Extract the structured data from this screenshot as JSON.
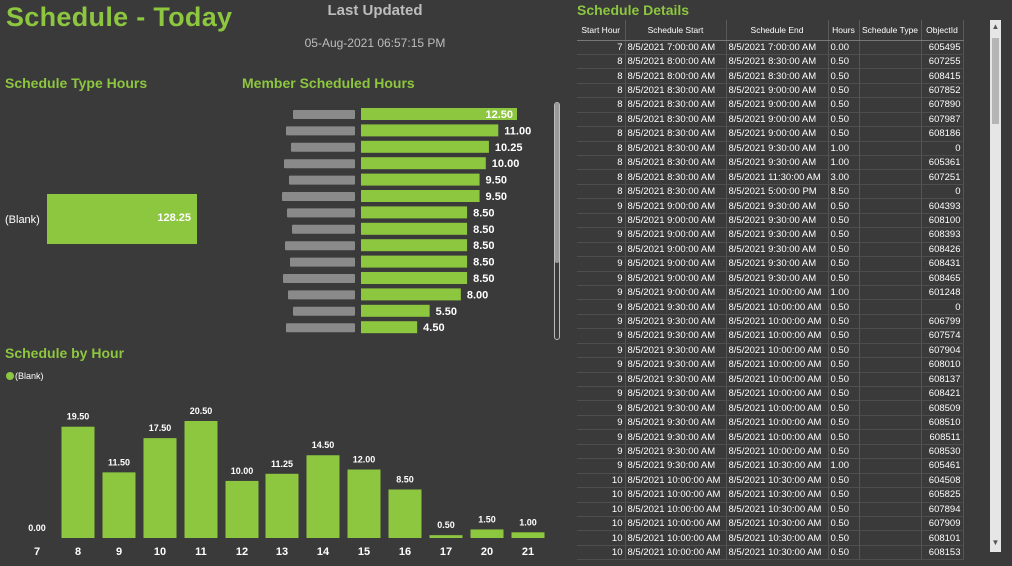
{
  "header": {
    "title": "Schedule - Today",
    "last_updated_label": "Last Updated",
    "last_updated_value": "05-Aug-2021 06:57:15 PM"
  },
  "schedule_type_hours": {
    "title": "Schedule Type Hours",
    "category": "(Blank)",
    "value": "128.25"
  },
  "member_hours": {
    "title": "Member Scheduled Hours"
  },
  "schedule_by_hour": {
    "title": "Schedule by Hour",
    "legend": "(Blank)"
  },
  "schedule_details": {
    "title": "Schedule Details",
    "columns": [
      "Start Hour",
      "Schedule Start",
      "Schedule End",
      "Hours",
      "Schedule Type",
      "ObjectId"
    ],
    "rows": [
      [
        "7",
        "8/5/2021 7:00:00 AM",
        "8/5/2021 7:00:00 AM",
        "0.00",
        "",
        "605495"
      ],
      [
        "8",
        "8/5/2021 8:00:00 AM",
        "8/5/2021 8:30:00 AM",
        "0.50",
        "",
        "607255"
      ],
      [
        "8",
        "8/5/2021 8:00:00 AM",
        "8/5/2021 8:30:00 AM",
        "0.50",
        "",
        "608415"
      ],
      [
        "8",
        "8/5/2021 8:30:00 AM",
        "8/5/2021 9:00:00 AM",
        "0.50",
        "",
        "607852"
      ],
      [
        "8",
        "8/5/2021 8:30:00 AM",
        "8/5/2021 9:00:00 AM",
        "0.50",
        "",
        "607890"
      ],
      [
        "8",
        "8/5/2021 8:30:00 AM",
        "8/5/2021 9:00:00 AM",
        "0.50",
        "",
        "607987"
      ],
      [
        "8",
        "8/5/2021 8:30:00 AM",
        "8/5/2021 9:00:00 AM",
        "0.50",
        "",
        "608186"
      ],
      [
        "8",
        "8/5/2021 8:30:00 AM",
        "8/5/2021 9:30:00 AM",
        "1.00",
        "",
        "0"
      ],
      [
        "8",
        "8/5/2021 8:30:00 AM",
        "8/5/2021 9:30:00 AM",
        "1.00",
        "",
        "605361"
      ],
      [
        "8",
        "8/5/2021 8:30:00 AM",
        "8/5/2021 11:30:00 AM",
        "3.00",
        "",
        "607251"
      ],
      [
        "8",
        "8/5/2021 8:30:00 AM",
        "8/5/2021 5:00:00 PM",
        "8.50",
        "",
        "0"
      ],
      [
        "9",
        "8/5/2021 9:00:00 AM",
        "8/5/2021 9:30:00 AM",
        "0.50",
        "",
        "604393"
      ],
      [
        "9",
        "8/5/2021 9:00:00 AM",
        "8/5/2021 9:30:00 AM",
        "0.50",
        "",
        "608100"
      ],
      [
        "9",
        "8/5/2021 9:00:00 AM",
        "8/5/2021 9:30:00 AM",
        "0.50",
        "",
        "608393"
      ],
      [
        "9",
        "8/5/2021 9:00:00 AM",
        "8/5/2021 9:30:00 AM",
        "0.50",
        "",
        "608426"
      ],
      [
        "9",
        "8/5/2021 9:00:00 AM",
        "8/5/2021 9:30:00 AM",
        "0.50",
        "",
        "608431"
      ],
      [
        "9",
        "8/5/2021 9:00:00 AM",
        "8/5/2021 9:30:00 AM",
        "0.50",
        "",
        "608465"
      ],
      [
        "9",
        "8/5/2021 9:00:00 AM",
        "8/5/2021 10:00:00 AM",
        "1.00",
        "",
        "601248"
      ],
      [
        "9",
        "8/5/2021 9:30:00 AM",
        "8/5/2021 10:00:00 AM",
        "0.50",
        "",
        "0"
      ],
      [
        "9",
        "8/5/2021 9:30:00 AM",
        "8/5/2021 10:00:00 AM",
        "0.50",
        "",
        "606799"
      ],
      [
        "9",
        "8/5/2021 9:30:00 AM",
        "8/5/2021 10:00:00 AM",
        "0.50",
        "",
        "607574"
      ],
      [
        "9",
        "8/5/2021 9:30:00 AM",
        "8/5/2021 10:00:00 AM",
        "0.50",
        "",
        "607904"
      ],
      [
        "9",
        "8/5/2021 9:30:00 AM",
        "8/5/2021 10:00:00 AM",
        "0.50",
        "",
        "608010"
      ],
      [
        "9",
        "8/5/2021 9:30:00 AM",
        "8/5/2021 10:00:00 AM",
        "0.50",
        "",
        "608137"
      ],
      [
        "9",
        "8/5/2021 9:30:00 AM",
        "8/5/2021 10:00:00 AM",
        "0.50",
        "",
        "608421"
      ],
      [
        "9",
        "8/5/2021 9:30:00 AM",
        "8/5/2021 10:00:00 AM",
        "0.50",
        "",
        "608509"
      ],
      [
        "9",
        "8/5/2021 9:30:00 AM",
        "8/5/2021 10:00:00 AM",
        "0.50",
        "",
        "608510"
      ],
      [
        "9",
        "8/5/2021 9:30:00 AM",
        "8/5/2021 10:00:00 AM",
        "0.50",
        "",
        "608511"
      ],
      [
        "9",
        "8/5/2021 9:30:00 AM",
        "8/5/2021 10:00:00 AM",
        "0.50",
        "",
        "608530"
      ],
      [
        "9",
        "8/5/2021 9:30:00 AM",
        "8/5/2021 10:30:00 AM",
        "1.00",
        "",
        "605461"
      ],
      [
        "10",
        "8/5/2021 10:00:00 AM",
        "8/5/2021 10:30:00 AM",
        "0.50",
        "",
        "604508"
      ],
      [
        "10",
        "8/5/2021 10:00:00 AM",
        "8/5/2021 10:30:00 AM",
        "0.50",
        "",
        "605825"
      ],
      [
        "10",
        "8/5/2021 10:00:00 AM",
        "8/5/2021 10:30:00 AM",
        "0.50",
        "",
        "607894"
      ],
      [
        "10",
        "8/5/2021 10:00:00 AM",
        "8/5/2021 10:30:00 AM",
        "0.50",
        "",
        "607909"
      ],
      [
        "10",
        "8/5/2021 10:00:00 AM",
        "8/5/2021 10:30:00 AM",
        "0.50",
        "",
        "608101"
      ],
      [
        "10",
        "8/5/2021 10:00:00 AM",
        "8/5/2021 10:30:00 AM",
        "0.50",
        "",
        "608153"
      ]
    ]
  },
  "colors": {
    "background": "#3a3a3a",
    "accent": "#8dc63f"
  },
  "chart_data": [
    {
      "type": "bar",
      "title": "Member Scheduled Hours",
      "orientation": "horizontal",
      "values": [
        12.5,
        11.0,
        10.25,
        10.0,
        9.5,
        9.5,
        8.5,
        8.5,
        8.5,
        8.5,
        8.5,
        8.0,
        5.5,
        4.5
      ],
      "value_labels": [
        "12.50",
        "11.00",
        "10.25",
        "10.00",
        "9.50",
        "9.50",
        "8.50",
        "8.50",
        "8.50",
        "8.50",
        "8.50",
        "8.00",
        "5.50",
        "4.50"
      ],
      "categories_obscured": true
    },
    {
      "type": "bar",
      "title": "Schedule by Hour",
      "categories": [
        "7",
        "8",
        "9",
        "10",
        "11",
        "12",
        "13",
        "14",
        "15",
        "16",
        "17",
        "20",
        "21"
      ],
      "values": [
        0.0,
        19.5,
        11.5,
        17.5,
        20.5,
        10.0,
        11.25,
        14.5,
        12.0,
        8.5,
        0.5,
        1.5,
        1.0
      ],
      "value_labels": [
        "0.00",
        "19.50",
        "11.50",
        "17.50",
        "20.50",
        "10.00",
        "11.25",
        "14.50",
        "12.00",
        "8.50",
        "0.50",
        "1.50",
        "1.00"
      ],
      "series": [
        {
          "name": "(Blank)",
          "values": [
            0.0,
            19.5,
            11.5,
            17.5,
            20.5,
            10.0,
            11.25,
            14.5,
            12.0,
            8.5,
            0.5,
            1.5,
            1.0
          ]
        }
      ]
    }
  ]
}
